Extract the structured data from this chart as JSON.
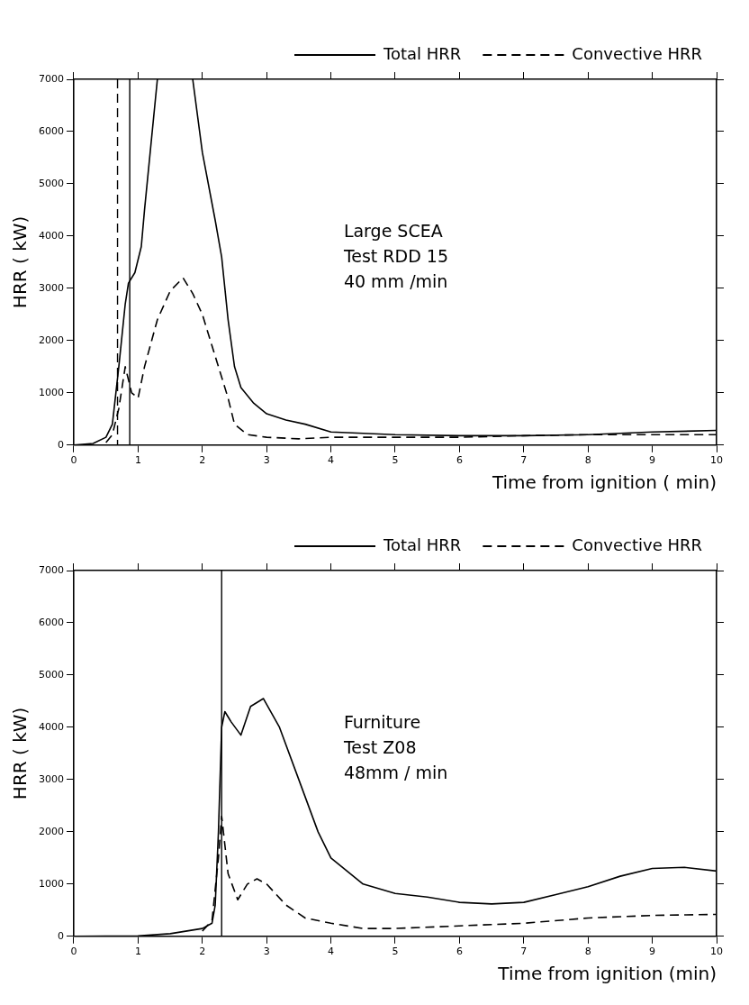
{
  "chart_data": [
    {
      "type": "line",
      "xlabel": "Time from ignition ( min)",
      "ylabel": "HRR ( kW)",
      "xlim": [
        0,
        10
      ],
      "xticks": [
        0,
        1,
        2,
        3,
        4,
        5,
        6,
        7,
        8,
        9,
        10
      ],
      "ylim": [
        0,
        7000
      ],
      "yticks": [
        0,
        1000,
        2000,
        3000,
        4000,
        5000,
        6000,
        7000
      ],
      "grid": false,
      "legend": "top right",
      "marker": "none",
      "annotations": [
        "Large SCEA",
        "Test RDD 15",
        "40 mm /min"
      ],
      "ref_lines": [
        {
          "axis": "x",
          "value": 0.68,
          "label": null,
          "color": "#000000",
          "line_style": "dashed"
        },
        {
          "axis": "x",
          "value": 0.87,
          "label": null,
          "color": "#000000",
          "line_style": "solid"
        }
      ],
      "series": [
        {
          "name": "Total HRR",
          "color": "#000000",
          "line_style": "solid",
          "x": [
            0,
            0.3,
            0.5,
            0.6,
            0.7,
            0.8,
            0.85,
            0.95,
            1.05,
            1.1,
            1.3,
            1.5,
            1.85,
            2.0,
            2.2,
            2.3,
            2.4,
            2.5,
            2.6,
            2.8,
            3.0,
            3.3,
            3.6,
            4.0,
            5,
            6,
            7,
            8,
            9,
            10
          ],
          "values": [
            0,
            30,
            150,
            400,
            1500,
            2700,
            3100,
            3300,
            3800,
            4500,
            7000,
            null,
            7000,
            5600,
            4300,
            3600,
            2400,
            1500,
            1100,
            800,
            600,
            480,
            400,
            250,
            200,
            180,
            180,
            200,
            250,
            280
          ]
        },
        {
          "name": "Convective HRR",
          "color": "#000000",
          "line_style": "dashed",
          "x": [
            0.5,
            0.6,
            0.7,
            0.8,
            0.9,
            1.0,
            1.1,
            1.3,
            1.5,
            1.7,
            1.85,
            2.0,
            2.2,
            2.4,
            2.5,
            2.7,
            3.0,
            3.5,
            4,
            5,
            6,
            7,
            8,
            9,
            10
          ],
          "values": [
            50,
            200,
            700,
            1500,
            1000,
            900,
            1500,
            2400,
            2950,
            3200,
            2900,
            2500,
            1700,
            900,
            400,
            200,
            150,
            120,
            150,
            150,
            150,
            180,
            200,
            200,
            200
          ]
        }
      ]
    },
    {
      "type": "line",
      "xlabel": "Time from ignition (min)",
      "ylabel": "HRR ( kW)",
      "xlim": [
        0,
        10
      ],
      "xticks": [
        0,
        1,
        2,
        3,
        4,
        5,
        6,
        7,
        8,
        9,
        10
      ],
      "ylim": [
        0,
        7000
      ],
      "yticks": [
        0,
        1000,
        2000,
        3000,
        4000,
        5000,
        6000,
        7000
      ],
      "grid": false,
      "legend": "top right",
      "marker": "none",
      "annotations": [
        "Furniture",
        "Test Z08",
        "48mm / min"
      ],
      "ref_lines": [
        {
          "axis": "x",
          "value": 2.3,
          "label": null,
          "color": "#000000",
          "line_style": "solid"
        }
      ],
      "series": [
        {
          "name": "Total HRR",
          "color": "#000000",
          "line_style": "solid",
          "x": [
            0,
            1,
            1.5,
            2,
            2.15,
            2.2,
            2.25,
            2.3,
            2.35,
            2.45,
            2.6,
            2.75,
            2.95,
            3.2,
            3.5,
            3.8,
            4.0,
            4.5,
            5.0,
            5.5,
            6.0,
            6.5,
            7.0,
            7.5,
            8.0,
            8.5,
            9.0,
            9.5,
            10
          ],
          "values": [
            0,
            10,
            50,
            150,
            250,
            600,
            2000,
            4000,
            4300,
            4100,
            3850,
            4400,
            4550,
            4000,
            3000,
            2000,
            1500,
            1000,
            820,
            750,
            650,
            620,
            650,
            800,
            950,
            1150,
            1300,
            1320,
            1250
          ]
        },
        {
          "name": "Convective HRR",
          "color": "#000000",
          "line_style": "dashed",
          "x": [
            2.0,
            2.15,
            2.25,
            2.3,
            2.4,
            2.55,
            2.7,
            2.85,
            3.0,
            3.3,
            3.6,
            4.0,
            4.5,
            5,
            6,
            7,
            8,
            9,
            10
          ],
          "values": [
            100,
            300,
            1500,
            2300,
            1200,
            700,
            1000,
            1100,
            1000,
            600,
            350,
            250,
            150,
            150,
            200,
            250,
            350,
            400,
            420
          ]
        }
      ]
    }
  ]
}
